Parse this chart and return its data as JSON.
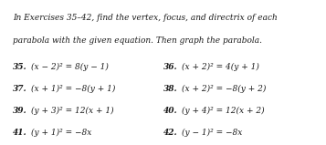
{
  "title_line1": "In Exercises 35–42, find the vertex, focus, and directrix of each",
  "title_line2": "parabola with the given equation. Then graph the parabola.",
  "left_exercises": [
    {
      "num": "35.",
      "eq": "(x − 2)² = 8(y − 1)"
    },
    {
      "num": "37.",
      "eq": "(x + 1)² = −8(y + 1)"
    },
    {
      "num": "39.",
      "eq": "(y + 3)² = 12(x + 1)"
    },
    {
      "num": "41.",
      "eq": "(y + 1)² = −8x"
    }
  ],
  "right_exercises": [
    {
      "num": "36.",
      "eq": "(x + 2)² = 4(y + 1)"
    },
    {
      "num": "38.",
      "eq": "(x + 2)² = −8(y + 2)"
    },
    {
      "num": "40.",
      "eq": "(y + 4)² = 12(x + 2)"
    },
    {
      "num": "42.",
      "eq": "(y − 1)² = −8x"
    }
  ],
  "bg_color": "#ffffff",
  "text_color": "#1a1a1a",
  "title_fontsize": 6.5,
  "eq_fontsize": 6.5,
  "num_fontsize": 6.5
}
